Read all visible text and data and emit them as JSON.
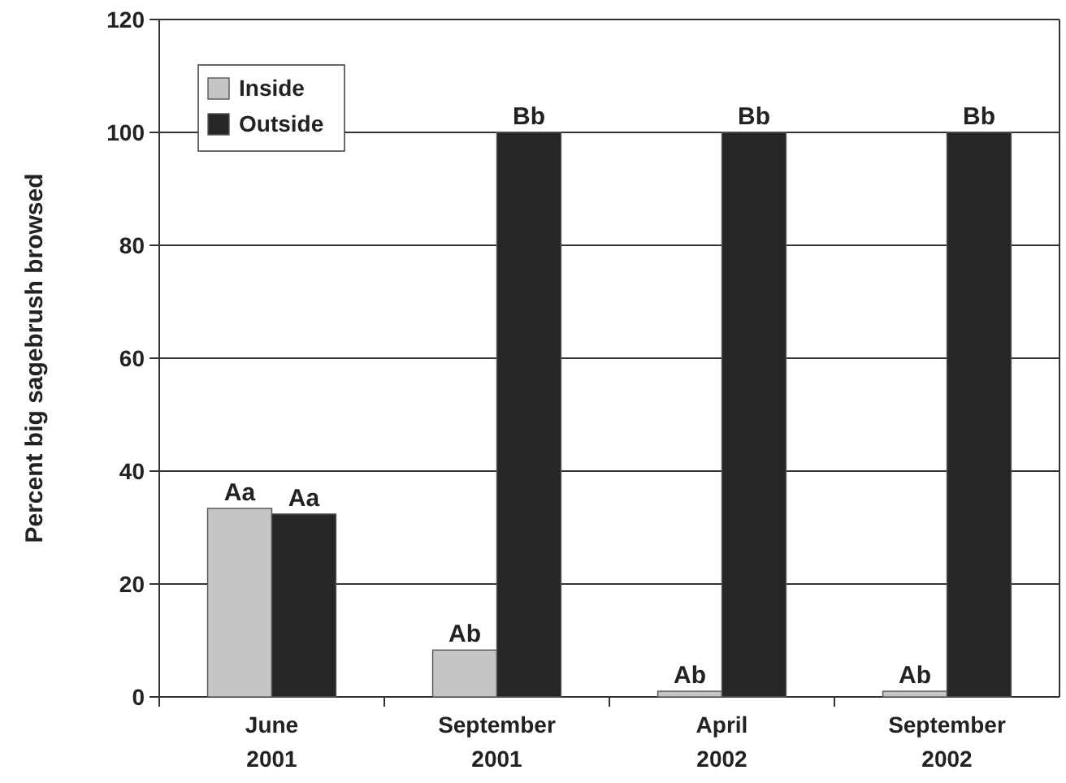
{
  "chart_data": {
    "type": "bar",
    "ylabel": "Percent big sagebrush browsed",
    "categories": [
      "June\n2001",
      "September\n2001",
      "April\n2002",
      "September\n2002"
    ],
    "series": [
      {
        "name": "Inside",
        "color": "#c4c5c7",
        "values": [
          33.4,
          8.3,
          1,
          1
        ],
        "value_labels": [
          "Aa",
          "Ab",
          "Ab",
          "Ab"
        ]
      },
      {
        "name": "Outside",
        "color": "#282526",
        "values": [
          32.4,
          100,
          100,
          100
        ],
        "value_labels": [
          "Aa",
          "Bb",
          "Bb",
          "Bb"
        ]
      }
    ],
    "ylim": [
      0,
      120
    ],
    "yticks": [
      0,
      20,
      40,
      60,
      80,
      100,
      120
    ],
    "grid": "y",
    "legend": "top left"
  }
}
